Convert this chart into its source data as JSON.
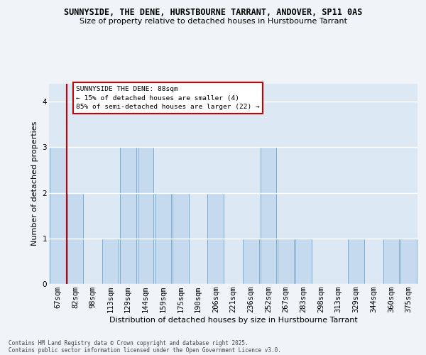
{
  "title1": "SUNNYSIDE, THE DENE, HURSTBOURNE TARRANT, ANDOVER, SP11 0AS",
  "title2": "Size of property relative to detached houses in Hurstbourne Tarrant",
  "xlabel": "Distribution of detached houses by size in Hurstbourne Tarrant",
  "ylabel": "Number of detached properties",
  "categories": [
    "67sqm",
    "82sqm",
    "98sqm",
    "113sqm",
    "129sqm",
    "144sqm",
    "159sqm",
    "175sqm",
    "190sqm",
    "206sqm",
    "221sqm",
    "236sqm",
    "252sqm",
    "267sqm",
    "283sqm",
    "298sqm",
    "313sqm",
    "329sqm",
    "344sqm",
    "360sqm",
    "375sqm"
  ],
  "values": [
    3,
    2,
    0,
    1,
    3,
    3,
    2,
    2,
    0,
    2,
    0,
    1,
    3,
    1,
    1,
    0,
    0,
    1,
    0,
    1,
    1
  ],
  "bar_color": "#c5d9ef",
  "bar_edge_color": "#7aadd4",
  "red_line_x": 1,
  "highlight_color": "#cc0000",
  "annotation_text": "SUNNYSIDE THE DENE: 88sqm\n← 15% of detached houses are smaller (4)\n85% of semi-detached houses are larger (22) →",
  "annotation_box_facecolor": "#ffffff",
  "annotation_box_edgecolor": "#cc0000",
  "footer": "Contains HM Land Registry data © Crown copyright and database right 2025.\nContains public sector information licensed under the Open Government Licence v3.0.",
  "plot_bg_color": "#dce9f5",
  "fig_bg_color": "#f0f4f8",
  "ylim": [
    0,
    4.4
  ],
  "yticks": [
    0,
    1,
    2,
    3,
    4
  ],
  "grid_color": "#b0c8e0",
  "title1_fontsize": 8.5,
  "title2_fontsize": 8.0,
  "xlabel_fontsize": 8.0,
  "ylabel_fontsize": 8.0,
  "tick_fontsize": 7.5,
  "annot_fontsize": 6.8
}
